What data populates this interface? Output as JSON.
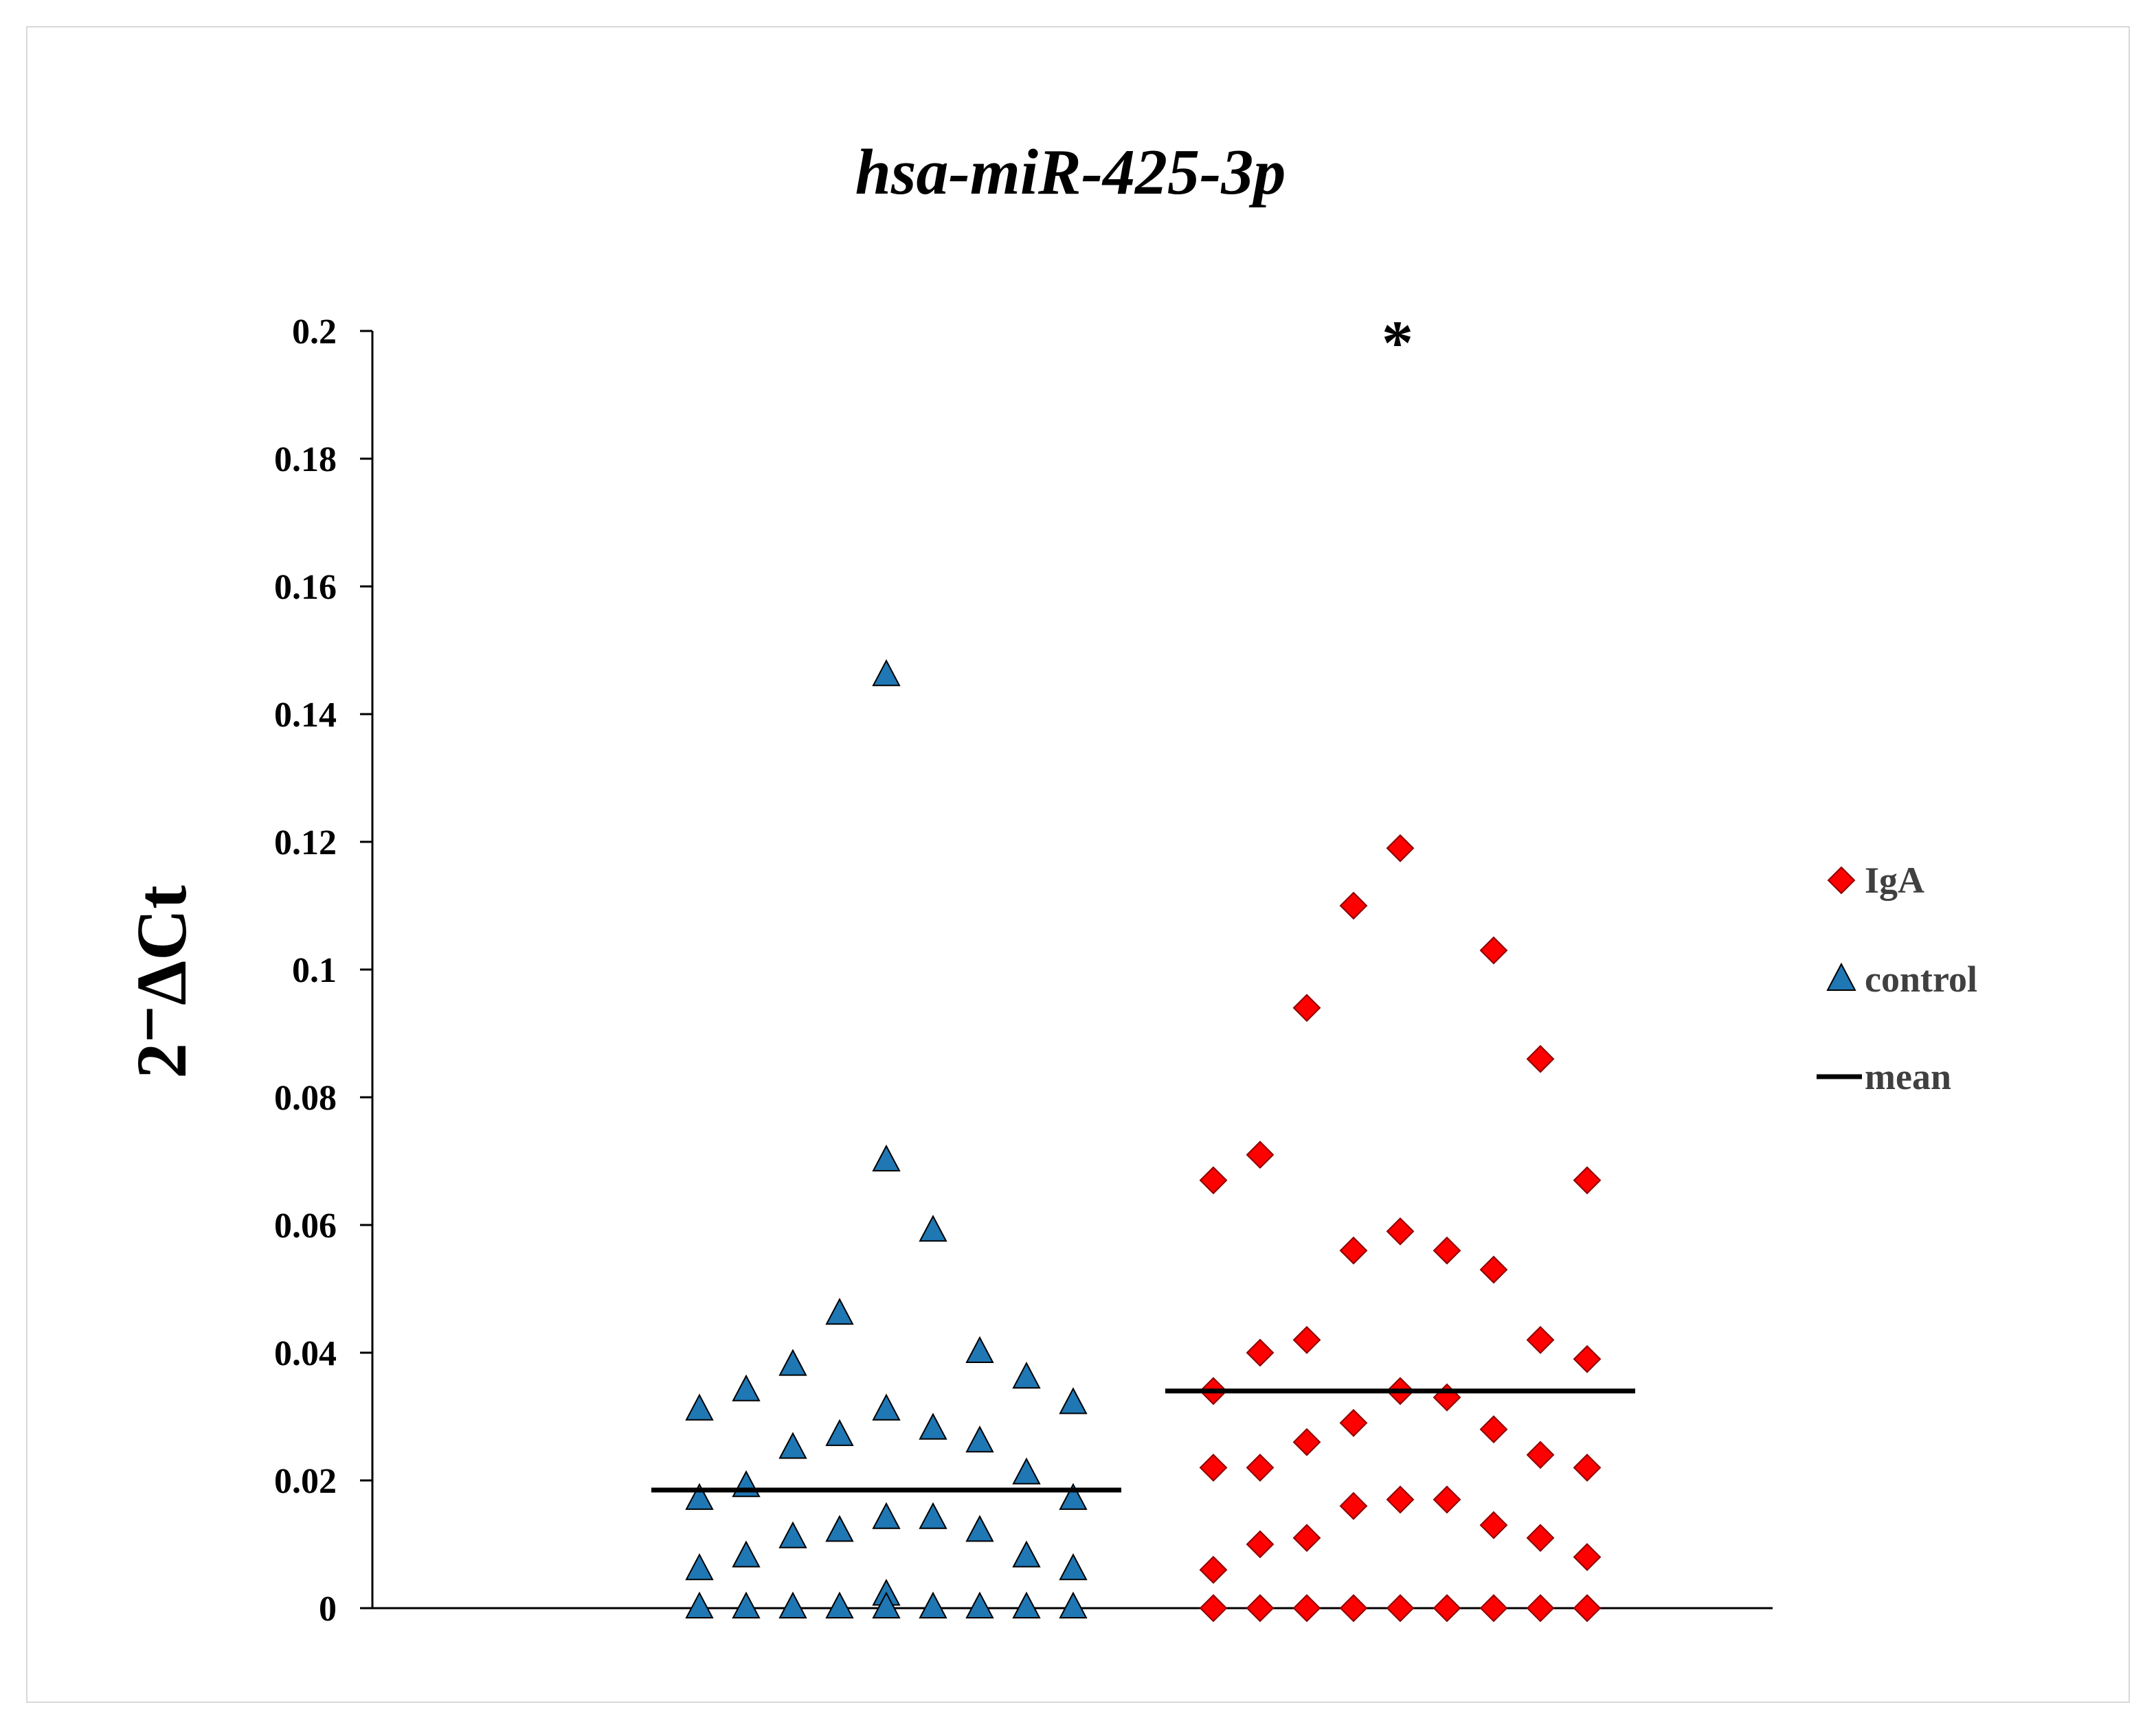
{
  "chart_data": {
    "type": "scatter",
    "title": "hsa-miR-425-3p",
    "ylabel": "2⁻ΔCt",
    "xlabel": "",
    "ylim": [
      0,
      0.2
    ],
    "yticks": [
      "0",
      "0.02",
      "0.04",
      "0.06",
      "0.08",
      "0.1",
      "0.12",
      "0.14",
      "0.16",
      "0.18",
      "0.2"
    ],
    "significance_marker": "*",
    "legend_position": "right",
    "series": [
      {
        "name": "control",
        "marker": "triangle",
        "color": "#1f77b4",
        "mean": 0.0185,
        "points": [
          {
            "x": 1,
            "y": 0.031
          },
          {
            "x": 1,
            "y": 0.017
          },
          {
            "x": 1,
            "y": 0.006
          },
          {
            "x": 1,
            "y": 0.0
          },
          {
            "x": 2,
            "y": 0.034
          },
          {
            "x": 2,
            "y": 0.019
          },
          {
            "x": 2,
            "y": 0.008
          },
          {
            "x": 2,
            "y": 0.0
          },
          {
            "x": 3,
            "y": 0.038
          },
          {
            "x": 3,
            "y": 0.025
          },
          {
            "x": 3,
            "y": 0.011
          },
          {
            "x": 3,
            "y": 0.0
          },
          {
            "x": 4,
            "y": 0.046
          },
          {
            "x": 4,
            "y": 0.027
          },
          {
            "x": 4,
            "y": 0.012
          },
          {
            "x": 4,
            "y": 0.0
          },
          {
            "x": 5,
            "y": 0.146
          },
          {
            "x": 5,
            "y": 0.07
          },
          {
            "x": 5,
            "y": 0.031
          },
          {
            "x": 5,
            "y": 0.014
          },
          {
            "x": 5,
            "y": 0.002
          },
          {
            "x": 5,
            "y": 0.0
          },
          {
            "x": 6,
            "y": 0.059
          },
          {
            "x": 6,
            "y": 0.028
          },
          {
            "x": 6,
            "y": 0.014
          },
          {
            "x": 6,
            "y": 0.0
          },
          {
            "x": 7,
            "y": 0.04
          },
          {
            "x": 7,
            "y": 0.026
          },
          {
            "x": 7,
            "y": 0.012
          },
          {
            "x": 7,
            "y": 0.0
          },
          {
            "x": 8,
            "y": 0.036
          },
          {
            "x": 8,
            "y": 0.021
          },
          {
            "x": 8,
            "y": 0.008
          },
          {
            "x": 8,
            "y": 0.0
          },
          {
            "x": 9,
            "y": 0.032
          },
          {
            "x": 9,
            "y": 0.017
          },
          {
            "x": 9,
            "y": 0.006
          },
          {
            "x": 9,
            "y": 0.0
          }
        ]
      },
      {
        "name": "IgA",
        "marker": "diamond",
        "color": "#ff0000",
        "mean": 0.034,
        "points": [
          {
            "x": 12,
            "y": 0.067
          },
          {
            "x": 12,
            "y": 0.034
          },
          {
            "x": 12,
            "y": 0.022
          },
          {
            "x": 12,
            "y": 0.006
          },
          {
            "x": 12,
            "y": 0.0
          },
          {
            "x": 13,
            "y": 0.071
          },
          {
            "x": 13,
            "y": 0.04
          },
          {
            "x": 13,
            "y": 0.022
          },
          {
            "x": 13,
            "y": 0.01
          },
          {
            "x": 13,
            "y": 0.0
          },
          {
            "x": 14,
            "y": 0.094
          },
          {
            "x": 14,
            "y": 0.042
          },
          {
            "x": 14,
            "y": 0.026
          },
          {
            "x": 14,
            "y": 0.011
          },
          {
            "x": 14,
            "y": 0.0
          },
          {
            "x": 15,
            "y": 0.11
          },
          {
            "x": 15,
            "y": 0.056
          },
          {
            "x": 15,
            "y": 0.029
          },
          {
            "x": 15,
            "y": 0.016
          },
          {
            "x": 15,
            "y": 0.0
          },
          {
            "x": 16,
            "y": 0.119
          },
          {
            "x": 16,
            "y": 0.059
          },
          {
            "x": 16,
            "y": 0.034
          },
          {
            "x": 16,
            "y": 0.017
          },
          {
            "x": 16,
            "y": 0.0
          },
          {
            "x": 17,
            "y": 0.056
          },
          {
            "x": 17,
            "y": 0.033
          },
          {
            "x": 17,
            "y": 0.017
          },
          {
            "x": 17,
            "y": 0.0
          },
          {
            "x": 18,
            "y": 0.103
          },
          {
            "x": 18,
            "y": 0.053
          },
          {
            "x": 18,
            "y": 0.028
          },
          {
            "x": 18,
            "y": 0.013
          },
          {
            "x": 18,
            "y": 0.0
          },
          {
            "x": 19,
            "y": 0.086
          },
          {
            "x": 19,
            "y": 0.042
          },
          {
            "x": 19,
            "y": 0.024
          },
          {
            "x": 19,
            "y": 0.011
          },
          {
            "x": 19,
            "y": 0.0
          },
          {
            "x": 20,
            "y": 0.067
          },
          {
            "x": 20,
            "y": 0.039
          },
          {
            "x": 20,
            "y": 0.022
          },
          {
            "x": 20,
            "y": 0.008
          },
          {
            "x": 20,
            "y": 0.0
          }
        ]
      }
    ],
    "legend": [
      "IgA",
      "control",
      "mean"
    ]
  }
}
